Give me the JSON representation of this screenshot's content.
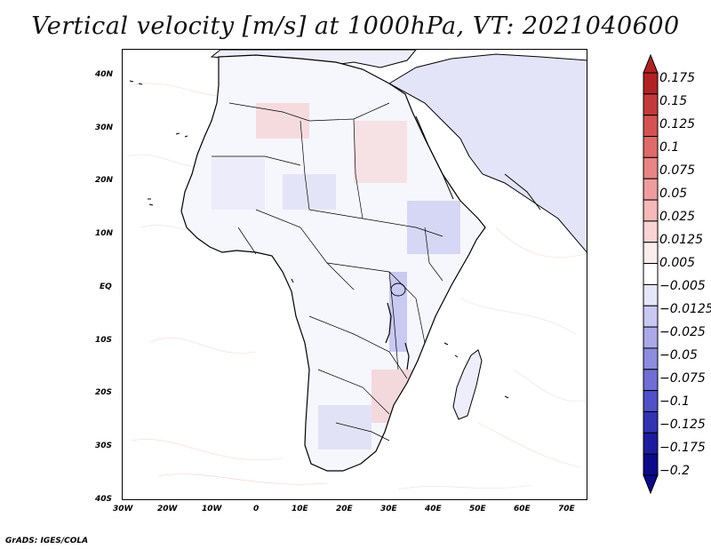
{
  "title": "Vertical velocity [m/s] at 1000hPa, VT: 2021040600",
  "footer": "GrADS: IGES/COLA",
  "map": {
    "lon_range": [
      -30,
      75
    ],
    "lat_range": [
      -40,
      45
    ],
    "y_ticks": [
      {
        "label": "40N",
        "value": 40
      },
      {
        "label": "30N",
        "value": 30
      },
      {
        "label": "20N",
        "value": 20
      },
      {
        "label": "10N",
        "value": 10
      },
      {
        "label": "EQ",
        "value": 0
      },
      {
        "label": "10S",
        "value": -10
      },
      {
        "label": "20S",
        "value": -20
      },
      {
        "label": "30S",
        "value": -30
      },
      {
        "label": "40S",
        "value": -40
      }
    ],
    "x_ticks": [
      {
        "label": "30W",
        "value": -30
      },
      {
        "label": "20W",
        "value": -20
      },
      {
        "label": "10W",
        "value": -10
      },
      {
        "label": "0",
        "value": 0
      },
      {
        "label": "10E",
        "value": 10
      },
      {
        "label": "20E",
        "value": 20
      },
      {
        "label": "30E",
        "value": 30
      },
      {
        "label": "40E",
        "value": 40
      },
      {
        "label": "50E",
        "value": 50
      },
      {
        "label": "60E",
        "value": 60
      },
      {
        "label": "70E",
        "value": 70
      }
    ]
  },
  "colorbar": {
    "labels": [
      "0.175",
      "0.15",
      "0.125",
      "0.1",
      "0.075",
      "0.05",
      "0.025",
      "0.0125",
      "0.005",
      "−0.005",
      "−0.0125",
      "−0.025",
      "−0.05",
      "−0.075",
      "−0.1",
      "−0.125",
      "−0.175",
      "−0.2"
    ],
    "colors": [
      "#b22222",
      "#c43a3a",
      "#d65252",
      "#e06a6a",
      "#e88484",
      "#f09c9c",
      "#f6b8b8",
      "#fad4d4",
      "#fdecec",
      "#ffffff",
      "#e6e6fa",
      "#c8c8f2",
      "#aaaaea",
      "#8c8ce0",
      "#6e6ed6",
      "#5050c8",
      "#3232b4",
      "#1c1ca0",
      "#0a0a8c"
    ]
  }
}
